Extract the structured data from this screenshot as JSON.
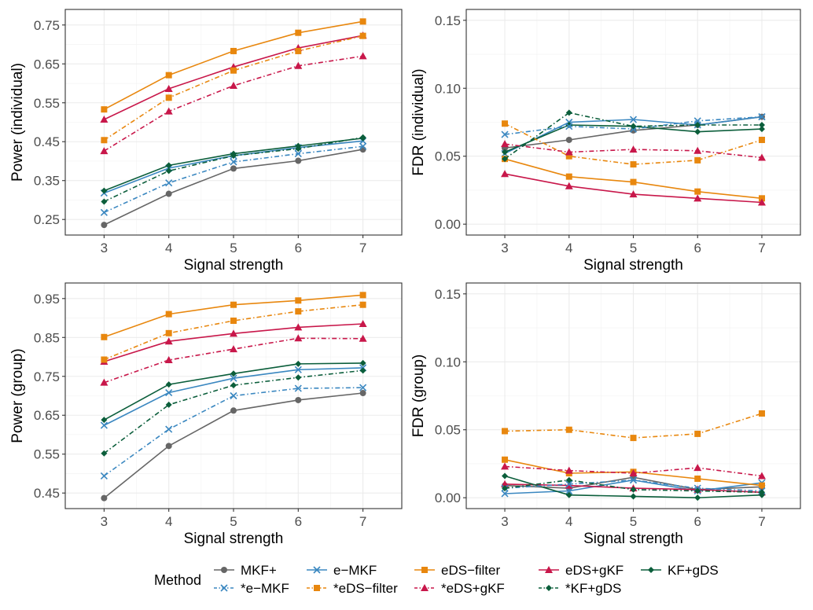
{
  "colors": {
    "gray": "#666666",
    "blue": "#3a87c0",
    "orange": "#e8870e",
    "red": "#c8174a",
    "green": "#0b5e3b"
  },
  "legend": {
    "title": "Method",
    "items": [
      {
        "label": "MKF+",
        "color": "#666666",
        "marker": "circle",
        "dashed": false
      },
      {
        "label": "e−MKF",
        "color": "#3a87c0",
        "marker": "cross",
        "dashed": false
      },
      {
        "label": "eDS−filter",
        "color": "#e8870e",
        "marker": "square",
        "dashed": false
      },
      {
        "label": "eDS+gKF",
        "color": "#c8174a",
        "marker": "triangle",
        "dashed": false
      },
      {
        "label": "KF+gDS",
        "color": "#0b5e3b",
        "marker": "diamond",
        "dashed": false
      },
      {
        "label": "*e−MKF",
        "color": "#3a87c0",
        "marker": "cross",
        "dashed": true
      },
      {
        "label": "*eDS−filter",
        "color": "#e8870e",
        "marker": "square",
        "dashed": true
      },
      {
        "label": "*eDS+gKF",
        "color": "#c8174a",
        "marker": "triangle",
        "dashed": true
      },
      {
        "label": "*KF+gDS",
        "color": "#0b5e3b",
        "marker": "diamond",
        "dashed": true
      }
    ]
  },
  "chart_data": [
    {
      "type": "line",
      "ylabel": "Power (individual)",
      "xlabel": "Signal strength",
      "x": [
        3,
        4,
        5,
        6,
        7
      ],
      "xlim": [
        2.4,
        7.6
      ],
      "ylim": [
        0.21,
        0.79
      ],
      "yticks": [
        0.25,
        0.35,
        0.45,
        0.55,
        0.65,
        0.75
      ],
      "ytick_labels": [
        "0.25",
        "0.35",
        "0.45",
        "0.55",
        "0.65",
        "0.75"
      ],
      "series": [
        {
          "name": "MKF+",
          "values": [
            0.236,
            0.316,
            0.381,
            0.401,
            0.43
          ]
        },
        {
          "name": "e−MKF",
          "values": [
            0.318,
            0.382,
            0.414,
            0.435,
            0.452
          ]
        },
        {
          "name": "eDS−filter",
          "values": [
            0.533,
            0.621,
            0.683,
            0.73,
            0.759
          ]
        },
        {
          "name": "eDS+gKF",
          "values": [
            0.507,
            0.586,
            0.642,
            0.691,
            0.723
          ]
        },
        {
          "name": "KF+gDS",
          "values": [
            0.324,
            0.389,
            0.419,
            0.439,
            0.459
          ]
        },
        {
          "name": "*e−MKF",
          "values": [
            0.268,
            0.344,
            0.398,
            0.419,
            0.438
          ]
        },
        {
          "name": "*eDS−filter",
          "values": [
            0.454,
            0.563,
            0.633,
            0.683,
            0.722
          ]
        },
        {
          "name": "*eDS+gKF",
          "values": [
            0.426,
            0.528,
            0.594,
            0.645,
            0.67
          ]
        },
        {
          "name": "*KF+gDS",
          "values": [
            0.296,
            0.375,
            0.414,
            0.432,
            0.461
          ]
        }
      ]
    },
    {
      "type": "line",
      "ylabel": "FDR (individual)",
      "xlabel": "Signal strength",
      "x": [
        3,
        4,
        5,
        6,
        7
      ],
      "xlim": [
        2.4,
        7.6
      ],
      "ylim": [
        -0.008,
        0.158
      ],
      "yticks": [
        0.0,
        0.05,
        0.1,
        0.15
      ],
      "ytick_labels": [
        "0.00",
        "0.05",
        "0.10",
        "0.15"
      ],
      "series": [
        {
          "name": "MKF+",
          "values": [
            0.056,
            0.062,
            0.069,
            0.073,
            0.079
          ]
        },
        {
          "name": "e−MKF",
          "values": [
            0.052,
            0.075,
            0.077,
            0.073,
            0.079
          ]
        },
        {
          "name": "eDS−filter",
          "values": [
            0.048,
            0.035,
            0.031,
            0.024,
            0.019
          ]
        },
        {
          "name": "eDS+gKF",
          "values": [
            0.037,
            0.028,
            0.022,
            0.019,
            0.016
          ]
        },
        {
          "name": "KF+gDS",
          "values": [
            0.053,
            0.073,
            0.072,
            0.068,
            0.07
          ]
        },
        {
          "name": "*e−MKF",
          "values": [
            0.066,
            0.072,
            0.07,
            0.076,
            0.079
          ]
        },
        {
          "name": "*eDS−filter",
          "values": [
            0.074,
            0.05,
            0.044,
            0.047,
            0.062
          ]
        },
        {
          "name": "*eDS+gKF",
          "values": [
            0.059,
            0.053,
            0.055,
            0.054,
            0.049
          ]
        },
        {
          "name": "*KF+gDS",
          "values": [
            0.048,
            0.082,
            0.072,
            0.073,
            0.073
          ]
        }
      ]
    },
    {
      "type": "line",
      "ylabel": "Power (group)",
      "xlabel": "Signal strength",
      "x": [
        3,
        4,
        5,
        6,
        7
      ],
      "xlim": [
        2.4,
        7.6
      ],
      "ylim": [
        0.41,
        0.99
      ],
      "yticks": [
        0.45,
        0.55,
        0.65,
        0.75,
        0.85,
        0.95
      ],
      "ytick_labels": [
        "0.45",
        "0.55",
        "0.65",
        "0.75",
        "0.85",
        "0.95"
      ],
      "series": [
        {
          "name": "MKF+",
          "values": [
            0.437,
            0.571,
            0.662,
            0.689,
            0.707
          ]
        },
        {
          "name": "e−MKF",
          "values": [
            0.624,
            0.708,
            0.745,
            0.767,
            0.772
          ]
        },
        {
          "name": "eDS−filter",
          "values": [
            0.851,
            0.91,
            0.934,
            0.945,
            0.959
          ]
        },
        {
          "name": "eDS+gKF",
          "values": [
            0.788,
            0.84,
            0.86,
            0.876,
            0.885
          ]
        },
        {
          "name": "KF+gDS",
          "values": [
            0.638,
            0.729,
            0.757,
            0.782,
            0.784
          ]
        },
        {
          "name": "*e−MKF",
          "values": [
            0.494,
            0.614,
            0.7,
            0.719,
            0.721
          ]
        },
        {
          "name": "*eDS−filter",
          "values": [
            0.793,
            0.861,
            0.893,
            0.917,
            0.934
          ]
        },
        {
          "name": "*eDS+gKF",
          "values": [
            0.734,
            0.792,
            0.82,
            0.848,
            0.847
          ]
        },
        {
          "name": "*KF+gDS",
          "values": [
            0.552,
            0.677,
            0.727,
            0.747,
            0.765
          ]
        }
      ]
    },
    {
      "type": "line",
      "ylabel": "FDR (group)",
      "xlabel": "Signal strength",
      "x": [
        3,
        4,
        5,
        6,
        7
      ],
      "xlim": [
        2.4,
        7.6
      ],
      "ylim": [
        -0.008,
        0.158
      ],
      "yticks": [
        0.0,
        0.05,
        0.1,
        0.15
      ],
      "ytick_labels": [
        "0.00",
        "0.05",
        "0.10",
        "0.15"
      ],
      "series": [
        {
          "name": "MKF+",
          "values": [
            0.009,
            0.007,
            0.015,
            0.006,
            0.008
          ]
        },
        {
          "name": "e−MKF",
          "values": [
            0.003,
            0.005,
            0.013,
            0.005,
            0.011
          ]
        },
        {
          "name": "eDS−filter",
          "values": [
            0.028,
            0.018,
            0.019,
            0.014,
            0.009
          ]
        },
        {
          "name": "eDS+gKF",
          "values": [
            0.01,
            0.009,
            0.007,
            0.006,
            0.004
          ]
        },
        {
          "name": "KF+gDS",
          "values": [
            0.016,
            0.002,
            0.001,
            0.0,
            0.002
          ]
        },
        {
          "name": "*e−MKF",
          "values": [
            0.007,
            0.01,
            0.013,
            0.007,
            0.005
          ]
        },
        {
          "name": "*eDS−filter",
          "values": [
            0.049,
            0.05,
            0.044,
            0.047,
            0.062
          ]
        },
        {
          "name": "*eDS+gKF",
          "values": [
            0.023,
            0.02,
            0.018,
            0.022,
            0.016
          ]
        },
        {
          "name": "*KF+gDS",
          "values": [
            0.007,
            0.013,
            0.006,
            0.005,
            0.004
          ]
        }
      ]
    }
  ]
}
